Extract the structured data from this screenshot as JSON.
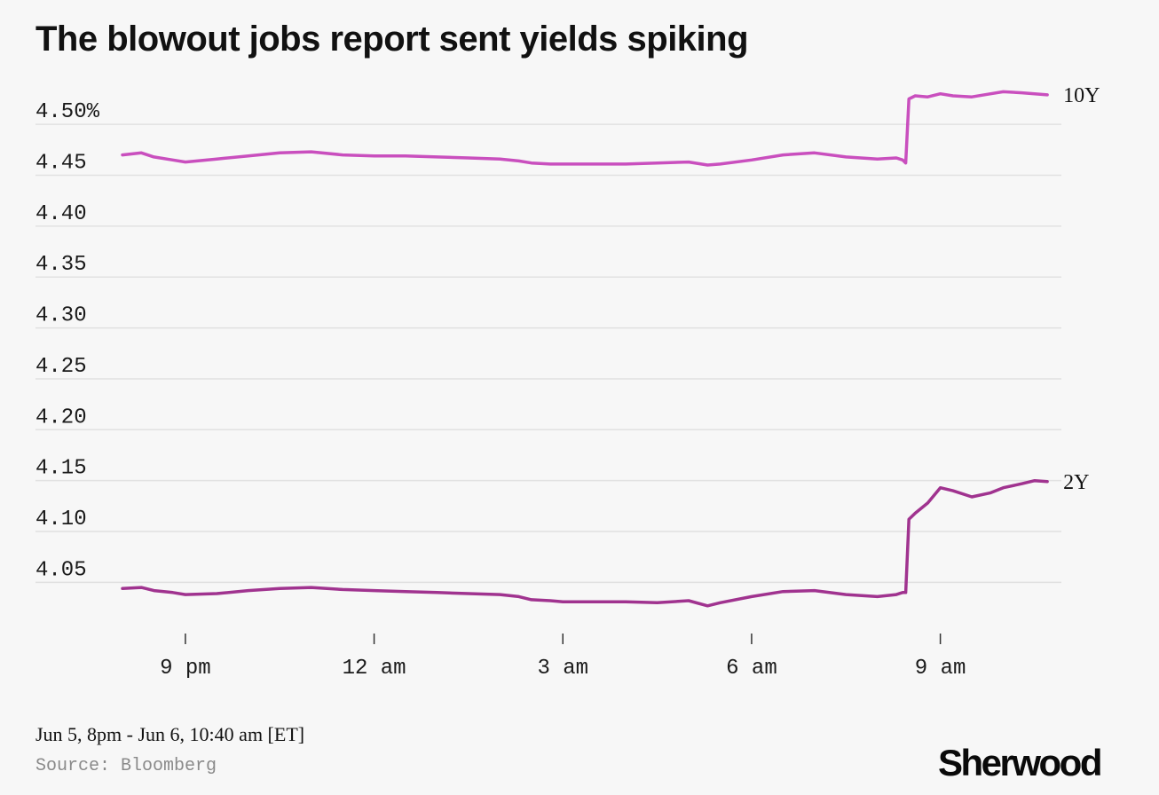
{
  "title": "The blowout jobs report sent yields spiking",
  "footer": {
    "date_range": "Jun 5, 8pm - Jun 6, 10:40 am [ET]",
    "source": "Source: Bloomberg",
    "brand": "Sherwood"
  },
  "chart_data": {
    "type": "line",
    "title": "The blowout jobs report sent yields spiking",
    "xlabel": "",
    "ylabel": "",
    "x_unit": "hours since Jun 5, 8pm ET",
    "xlim": [
      0,
      14.67
    ],
    "ylim": [
      4.005,
      4.535
    ],
    "y_ticks": [
      4.05,
      4.1,
      4.15,
      4.2,
      4.25,
      4.3,
      4.35,
      4.4,
      4.45,
      4.5
    ],
    "y_tick_labels": [
      "4.05",
      "4.10",
      "4.15",
      "4.20",
      "4.25",
      "4.30",
      "4.35",
      "4.40",
      "4.45",
      "4.50%"
    ],
    "x_ticks": [
      1,
      4,
      7,
      10,
      13
    ],
    "x_tick_labels": [
      "9 pm",
      "12 am",
      "3 am",
      "6 am",
      "9 am"
    ],
    "grid": true,
    "legend": "direct labels at line ends",
    "series": [
      {
        "name": "10Y",
        "color": "#c94fbe",
        "x": [
          0,
          0.3,
          0.5,
          0.8,
          1.0,
          1.5,
          2.0,
          2.5,
          3.0,
          3.5,
          4.0,
          4.5,
          5.0,
          5.5,
          6.0,
          6.3,
          6.5,
          6.8,
          7.0,
          7.5,
          8.0,
          8.5,
          9.0,
          9.3,
          9.5,
          10.0,
          10.5,
          11.0,
          11.5,
          12.0,
          12.3,
          12.4,
          12.45,
          12.5,
          12.6,
          12.8,
          13.0,
          13.2,
          13.5,
          13.8,
          14.0,
          14.3,
          14.5,
          14.7
        ],
        "values": [
          4.47,
          4.472,
          4.468,
          4.465,
          4.463,
          4.466,
          4.469,
          4.472,
          4.473,
          4.47,
          4.469,
          4.469,
          4.468,
          4.467,
          4.466,
          4.464,
          4.462,
          4.461,
          4.461,
          4.461,
          4.461,
          4.462,
          4.463,
          4.46,
          4.461,
          4.465,
          4.47,
          4.472,
          4.468,
          4.466,
          4.467,
          4.465,
          4.462,
          4.525,
          4.528,
          4.527,
          4.53,
          4.528,
          4.527,
          4.53,
          4.532,
          4.531,
          4.53,
          4.529
        ]
      },
      {
        "name": "2Y",
        "color": "#a0338f",
        "x": [
          0,
          0.3,
          0.5,
          0.8,
          1.0,
          1.5,
          2.0,
          2.5,
          3.0,
          3.5,
          4.0,
          4.5,
          5.0,
          5.5,
          6.0,
          6.3,
          6.5,
          6.8,
          7.0,
          7.5,
          8.0,
          8.5,
          9.0,
          9.3,
          9.5,
          10.0,
          10.5,
          11.0,
          11.5,
          12.0,
          12.3,
          12.4,
          12.45,
          12.5,
          12.6,
          12.8,
          13.0,
          13.2,
          13.5,
          13.8,
          14.0,
          14.3,
          14.5,
          14.7
        ],
        "values": [
          4.044,
          4.045,
          4.042,
          4.04,
          4.038,
          4.039,
          4.042,
          4.044,
          4.045,
          4.043,
          4.042,
          4.041,
          4.04,
          4.039,
          4.038,
          4.036,
          4.033,
          4.032,
          4.031,
          4.031,
          4.031,
          4.03,
          4.032,
          4.027,
          4.03,
          4.036,
          4.041,
          4.042,
          4.038,
          4.036,
          4.038,
          4.04,
          4.04,
          4.112,
          4.118,
          4.128,
          4.143,
          4.14,
          4.134,
          4.138,
          4.143,
          4.147,
          4.15,
          4.149
        ]
      }
    ]
  }
}
